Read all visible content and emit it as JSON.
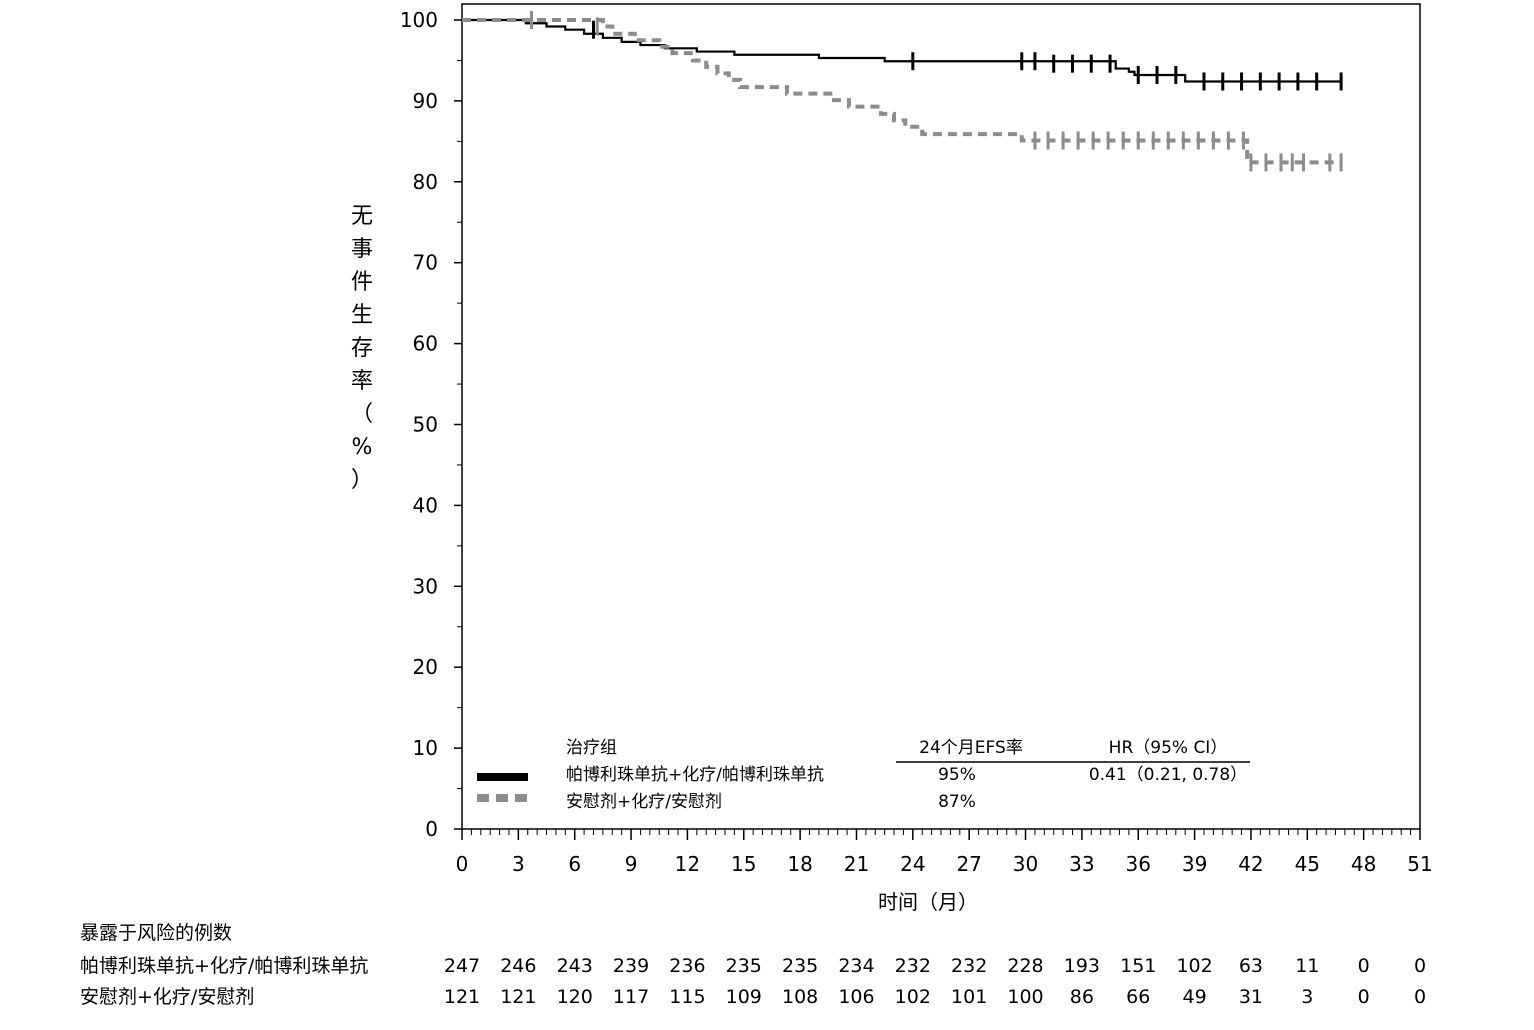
{
  "chart_data": {
    "type": "line",
    "title": "",
    "xlabel": "时间（月）",
    "ylabel": "无事件生存率（%）",
    "xlim": [
      0,
      51
    ],
    "ylim": [
      0,
      100
    ],
    "xticks": [
      0,
      3,
      6,
      9,
      12,
      15,
      18,
      21,
      24,
      27,
      30,
      33,
      36,
      39,
      42,
      45,
      48,
      51
    ],
    "yticks": [
      0,
      10,
      20,
      30,
      40,
      50,
      60,
      70,
      80,
      90,
      100
    ],
    "grid": false,
    "legend": {
      "placement": "bottom-left",
      "header_group": "治疗组",
      "header_rate": "24个月EFS率",
      "header_hr": "HR（95% CI）",
      "entries": [
        {
          "label": "帕博利珠单抗+化疗/帕博利珠单抗",
          "rate": "95%",
          "hr": "0.41（0.21, 0.78）"
        },
        {
          "label": "安慰剂+化疗/安慰剂",
          "rate": "87%",
          "hr": ""
        }
      ]
    },
    "series": [
      {
        "name": "帕博利珠单抗+化疗/帕博利珠单抗",
        "color": "#000000",
        "style": "solid",
        "x": [
          0,
          3.0,
          3.4,
          4.5,
          5.5,
          6.5,
          7.5,
          8.5,
          9.5,
          10.8,
          12.5,
          14.5,
          19.0,
          22.5,
          30.0,
          34.8,
          35.5,
          35.8,
          38.5,
          46.8
        ],
        "y": [
          100,
          100,
          99.6,
          99.2,
          98.8,
          98.3,
          97.8,
          97.3,
          96.9,
          96.5,
          96.1,
          95.7,
          95.3,
          94.9,
          94.9,
          94.0,
          93.6,
          93.2,
          92.4,
          92.4
        ],
        "censor_x": [
          7.0,
          24.0,
          29.8,
          30.5,
          31.5,
          32.5,
          33.5,
          34.5,
          36.0,
          37.0,
          38.0,
          39.5,
          40.5,
          41.5,
          42.5,
          43.5,
          44.5,
          45.5,
          46.8
        ],
        "censor_y": [
          98.8,
          94.9,
          94.9,
          94.9,
          94.6,
          94.6,
          94.6,
          94.6,
          93.2,
          93.2,
          93.2,
          92.4,
          92.4,
          92.4,
          92.4,
          92.4,
          92.4,
          92.4,
          92.4
        ]
      },
      {
        "name": "安慰剂+化疗/安慰剂",
        "color": "#8c8c8c",
        "style": "dashed",
        "x": [
          0,
          3.7,
          4.7,
          7.5,
          8.0,
          9.2,
          10.5,
          11.2,
          12.3,
          13.0,
          13.6,
          14.2,
          14.8,
          17.3,
          19.8,
          20.6,
          22.3,
          23.0,
          23.6,
          24.5,
          29.8,
          41.8,
          46.8
        ],
        "y": [
          100,
          100,
          100,
          99.2,
          98.3,
          97.5,
          96.7,
          95.9,
          95.0,
          94.2,
          93.4,
          92.6,
          91.7,
          90.9,
          90.1,
          89.3,
          88.4,
          87.6,
          86.8,
          85.9,
          85.1,
          82.4,
          82.4
        ],
        "censor_x": [
          3.7,
          7.2,
          30.5,
          31.2,
          32.0,
          32.8,
          33.6,
          34.4,
          35.2,
          36.0,
          36.8,
          37.6,
          38.4,
          39.2,
          40.0,
          40.8,
          41.6,
          42.0,
          42.8,
          43.6,
          44.2,
          44.8,
          46.2,
          46.8
        ],
        "censor_y": [
          100,
          99.2,
          85.1,
          85.1,
          85.1,
          85.1,
          85.1,
          85.1,
          85.1,
          85.1,
          85.1,
          85.1,
          85.1,
          85.1,
          85.1,
          85.1,
          85.1,
          82.4,
          82.4,
          82.4,
          82.4,
          82.4,
          82.4,
          82.4
        ]
      }
    ]
  },
  "at_risk": {
    "title": "暴露于风险的例数",
    "times": [
      0,
      3,
      6,
      9,
      12,
      15,
      18,
      21,
      24,
      27,
      30,
      33,
      36,
      39,
      42,
      45,
      48,
      51
    ],
    "rows": [
      {
        "name": "帕博利珠单抗+化疗/帕博利珠单抗",
        "counts": [
          "247",
          "246",
          "243",
          "239",
          "236",
          "235",
          "235",
          "234",
          "232",
          "232",
          "228",
          "193",
          "151",
          "102",
          "63",
          "11",
          "0",
          "0"
        ]
      },
      {
        "name": "安慰剂+化疗/安慰剂",
        "counts": [
          "121",
          "121",
          "120",
          "117",
          "115",
          "109",
          "108",
          "106",
          "102",
          "101",
          "100",
          "86",
          "66",
          "49",
          "31",
          "3",
          "0",
          "0"
        ]
      }
    ]
  }
}
